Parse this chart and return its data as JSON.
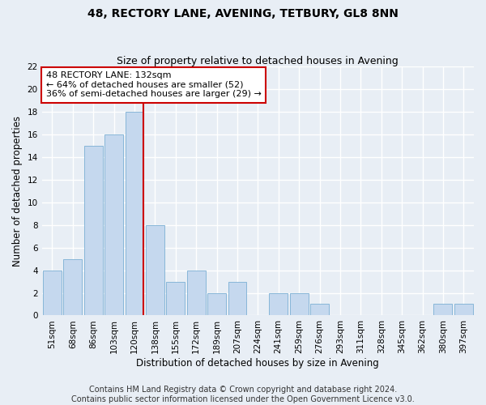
{
  "title": "48, RECTORY LANE, AVENING, TETBURY, GL8 8NN",
  "subtitle": "Size of property relative to detached houses in Avening",
  "xlabel": "Distribution of detached houses by size in Avening",
  "ylabel": "Number of detached properties",
  "categories": [
    "51sqm",
    "68sqm",
    "86sqm",
    "103sqm",
    "120sqm",
    "138sqm",
    "155sqm",
    "172sqm",
    "189sqm",
    "207sqm",
    "224sqm",
    "241sqm",
    "259sqm",
    "276sqm",
    "293sqm",
    "311sqm",
    "328sqm",
    "345sqm",
    "362sqm",
    "380sqm",
    "397sqm"
  ],
  "values": [
    4,
    5,
    15,
    16,
    18,
    8,
    3,
    4,
    2,
    3,
    0,
    2,
    2,
    1,
    0,
    0,
    0,
    0,
    0,
    1,
    1
  ],
  "bar_color": "#c5d8ee",
  "bar_edgecolor": "#7bafd4",
  "vline_index": 4,
  "annotation_line1": "48 RECTORY LANE: 132sqm",
  "annotation_line2": "← 64% of detached houses are smaller (52)",
  "annotation_line3": "36% of semi-detached houses are larger (29) →",
  "annotation_box_color": "#ffffff",
  "annotation_box_edgecolor": "#cc0000",
  "vline_color": "#cc0000",
  "ylim": [
    0,
    22
  ],
  "yticks": [
    0,
    2,
    4,
    6,
    8,
    10,
    12,
    14,
    16,
    18,
    20,
    22
  ],
  "footer_line1": "Contains HM Land Registry data © Crown copyright and database right 2024.",
  "footer_line2": "Contains public sector information licensed under the Open Government Licence v3.0.",
  "bg_color": "#e8eef5",
  "grid_color": "#ffffff",
  "title_fontsize": 10,
  "subtitle_fontsize": 9,
  "axis_label_fontsize": 8.5,
  "tick_fontsize": 7.5,
  "annotation_fontsize": 8,
  "footer_fontsize": 7
}
